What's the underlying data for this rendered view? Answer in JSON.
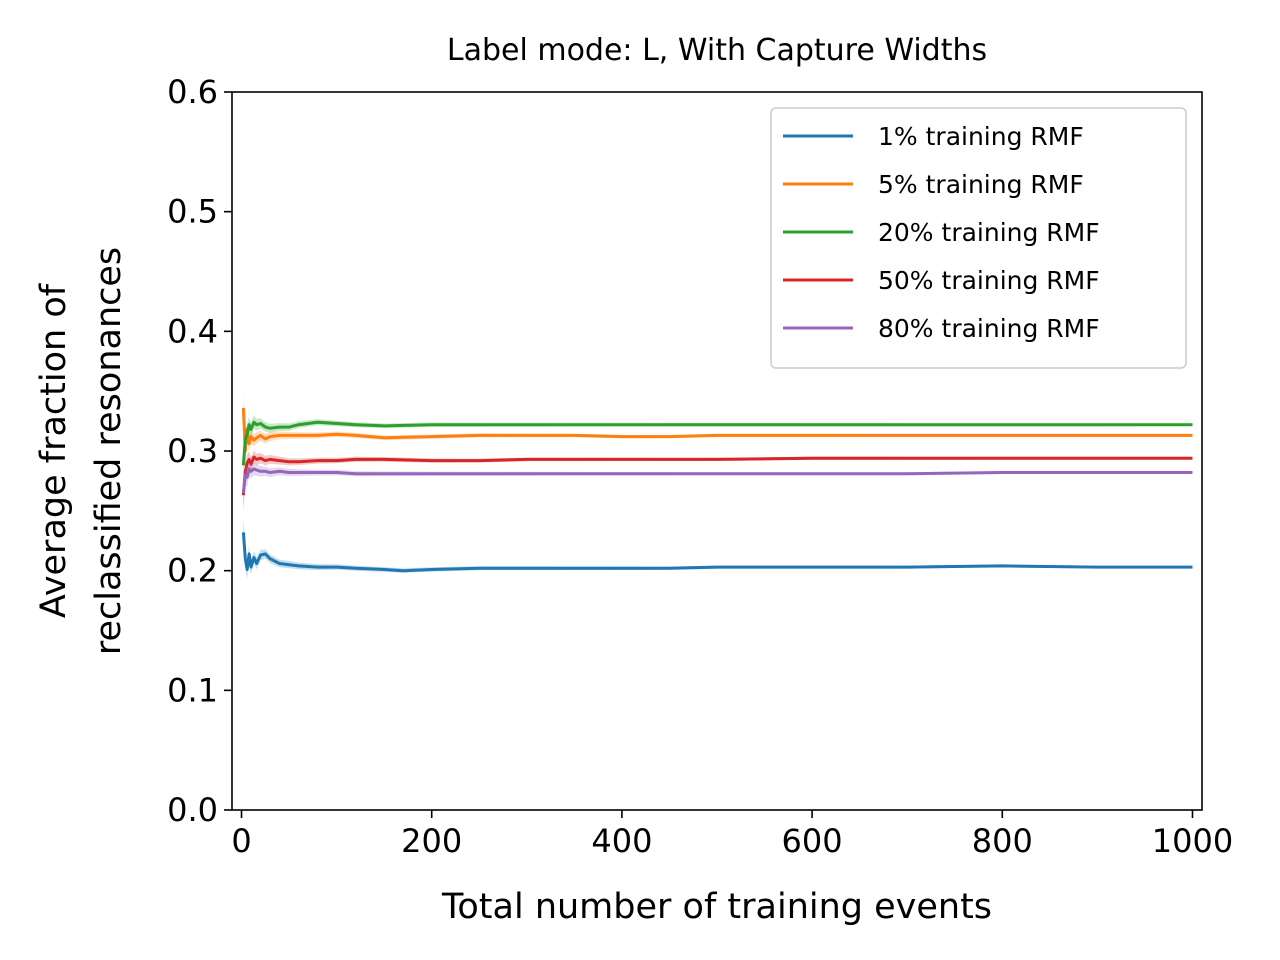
{
  "chart_data": {
    "type": "line",
    "title": "Label mode: L, With Capture Widths",
    "xlabel": "Total number of training events",
    "ylabel_lines": [
      "Average fraction of",
      "reclassified resonances"
    ],
    "xlim": [
      -10,
      1010
    ],
    "ylim": [
      0,
      0.6
    ],
    "xticks": [
      0,
      200,
      400,
      600,
      800,
      1000
    ],
    "xtick_labels": [
      "0",
      "200",
      "400",
      "600",
      "800",
      "1000"
    ],
    "yticks": [
      0,
      0.1,
      0.2,
      0.3,
      0.4,
      0.5,
      0.6
    ],
    "ytick_labels": [
      "0.0",
      "0.1",
      "0.2",
      "0.3",
      "0.4",
      "0.5",
      "0.6"
    ],
    "legend_position": "top-right",
    "grid": false,
    "series": [
      {
        "name": "1% training RMF",
        "color": "#1f77b4",
        "x": [
          2,
          4,
          6,
          8,
          10,
          13,
          16,
          20,
          25,
          30,
          40,
          50,
          60,
          80,
          100,
          120,
          150,
          170,
          200,
          250,
          300,
          350,
          400,
          450,
          500,
          600,
          700,
          800,
          900,
          1000
        ],
        "y": [
          0.232,
          0.21,
          0.201,
          0.214,
          0.203,
          0.211,
          0.206,
          0.213,
          0.214,
          0.21,
          0.206,
          0.205,
          0.204,
          0.203,
          0.203,
          0.202,
          0.201,
          0.2,
          0.201,
          0.202,
          0.202,
          0.202,
          0.202,
          0.202,
          0.203,
          0.203,
          0.203,
          0.204,
          0.203,
          0.203
        ]
      },
      {
        "name": "5% training RMF",
        "color": "#ff7f0e",
        "x": [
          2,
          4,
          6,
          8,
          10,
          13,
          16,
          20,
          25,
          30,
          40,
          50,
          60,
          80,
          100,
          120,
          150,
          200,
          250,
          300,
          350,
          400,
          450,
          500,
          600,
          700,
          800,
          900,
          1000
        ],
        "y": [
          0.336,
          0.3,
          0.318,
          0.306,
          0.312,
          0.309,
          0.311,
          0.313,
          0.31,
          0.312,
          0.313,
          0.313,
          0.313,
          0.313,
          0.314,
          0.313,
          0.311,
          0.312,
          0.313,
          0.313,
          0.313,
          0.312,
          0.312,
          0.313,
          0.313,
          0.313,
          0.313,
          0.313,
          0.313
        ]
      },
      {
        "name": "20% training RMF",
        "color": "#2ca02c",
        "x": [
          2,
          4,
          6,
          8,
          10,
          13,
          16,
          20,
          25,
          30,
          40,
          50,
          60,
          80,
          100,
          120,
          150,
          200,
          250,
          300,
          350,
          400,
          450,
          500,
          600,
          700,
          800,
          900,
          1000
        ],
        "y": [
          0.288,
          0.31,
          0.314,
          0.322,
          0.318,
          0.324,
          0.322,
          0.323,
          0.32,
          0.319,
          0.32,
          0.32,
          0.322,
          0.324,
          0.323,
          0.322,
          0.321,
          0.322,
          0.322,
          0.322,
          0.322,
          0.322,
          0.322,
          0.322,
          0.322,
          0.322,
          0.322,
          0.322,
          0.322
        ]
      },
      {
        "name": "50% training RMF",
        "color": "#d62728",
        "x": [
          2,
          4,
          6,
          8,
          10,
          13,
          16,
          20,
          25,
          30,
          40,
          50,
          60,
          80,
          100,
          120,
          150,
          200,
          250,
          300,
          350,
          400,
          450,
          500,
          600,
          700,
          800,
          900,
          1000
        ],
        "y": [
          0.263,
          0.283,
          0.29,
          0.293,
          0.289,
          0.295,
          0.293,
          0.294,
          0.292,
          0.293,
          0.292,
          0.291,
          0.291,
          0.292,
          0.292,
          0.293,
          0.293,
          0.292,
          0.292,
          0.293,
          0.293,
          0.293,
          0.293,
          0.293,
          0.294,
          0.294,
          0.294,
          0.294,
          0.294
        ]
      },
      {
        "name": "80% training RMF",
        "color": "#9467bd",
        "x": [
          2,
          4,
          6,
          8,
          10,
          13,
          16,
          20,
          25,
          30,
          40,
          50,
          60,
          80,
          100,
          120,
          150,
          200,
          250,
          300,
          350,
          400,
          450,
          500,
          600,
          700,
          800,
          900,
          1000
        ],
        "y": [
          0.265,
          0.28,
          0.278,
          0.285,
          0.283,
          0.285,
          0.284,
          0.283,
          0.283,
          0.282,
          0.283,
          0.282,
          0.282,
          0.282,
          0.282,
          0.281,
          0.281,
          0.281,
          0.281,
          0.281,
          0.281,
          0.281,
          0.281,
          0.281,
          0.281,
          0.281,
          0.282,
          0.282,
          0.282
        ]
      }
    ]
  }
}
